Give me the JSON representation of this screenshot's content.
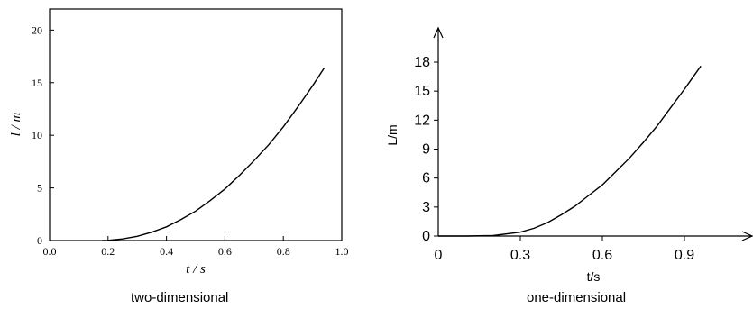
{
  "chart_data": [
    {
      "type": "line",
      "caption": "two-dimensional",
      "xlabel": "t / s",
      "ylabel": "l / m",
      "xlim": [
        0.0,
        1.0
      ],
      "ylim": [
        0,
        22
      ],
      "xticks": [
        "0.0",
        "0.2",
        "0.4",
        "0.6",
        "0.8",
        "1.0"
      ],
      "yticks": [
        "0",
        "5",
        "10",
        "15",
        "20"
      ],
      "grid": false,
      "series": [
        {
          "x": [
            0.18,
            0.2,
            0.25,
            0.3,
            0.35,
            0.4,
            0.45,
            0.5,
            0.55,
            0.6,
            0.65,
            0.7,
            0.75,
            0.8,
            0.85,
            0.9,
            0.94
          ],
          "y": [
            0.0,
            0.02,
            0.15,
            0.4,
            0.8,
            1.3,
            2.0,
            2.8,
            3.8,
            4.9,
            6.2,
            7.6,
            9.1,
            10.8,
            12.7,
            14.7,
            16.4
          ]
        }
      ]
    },
    {
      "type": "line",
      "caption": "one-dimensional",
      "xlabel": "t/s",
      "ylabel": "L/m",
      "xlim": [
        0,
        1.05
      ],
      "ylim": [
        0,
        20
      ],
      "xticks": [
        "0",
        "0.3",
        "0.6",
        "0.9"
      ],
      "yticks": [
        "0",
        "3",
        "6",
        "9",
        "12",
        "15",
        "18"
      ],
      "grid": false,
      "series": [
        {
          "x": [
            0,
            0.1,
            0.2,
            0.3,
            0.35,
            0.4,
            0.45,
            0.5,
            0.55,
            0.6,
            0.65,
            0.7,
            0.75,
            0.8,
            0.85,
            0.9,
            0.96
          ],
          "y": [
            0,
            0.0,
            0.05,
            0.4,
            0.8,
            1.4,
            2.2,
            3.1,
            4.2,
            5.3,
            6.7,
            8.1,
            9.7,
            11.4,
            13.3,
            15.2,
            17.6
          ]
        }
      ]
    }
  ]
}
